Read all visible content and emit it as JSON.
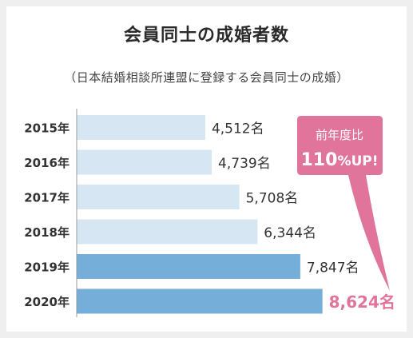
{
  "title": "会員同士の成婚者数",
  "subtitle": "（日本結婚相談所連盟に登録する会員同士の成婚）",
  "callout": {
    "line1": "前年度比",
    "value": "110",
    "suffix": "%UP!"
  },
  "colors": {
    "bar_light": "#d6e6f3",
    "bar_dark": "#75afd9",
    "accent": "#e0749a",
    "axis": "#999999",
    "text": "#333333"
  },
  "chart_data": {
    "type": "bar",
    "orientation": "horizontal",
    "categories": [
      "2015年",
      "2016年",
      "2017年",
      "2018年",
      "2019年",
      "2020年"
    ],
    "values": [
      4512,
      4739,
      5708,
      6344,
      7847,
      8624
    ],
    "value_labels": [
      "4,512名",
      "4,739名",
      "5,708名",
      "6,344名",
      "7,847名",
      "8,624名"
    ],
    "highlight": [
      false,
      false,
      false,
      false,
      true,
      true
    ],
    "emphasized_label_index": 5
  }
}
